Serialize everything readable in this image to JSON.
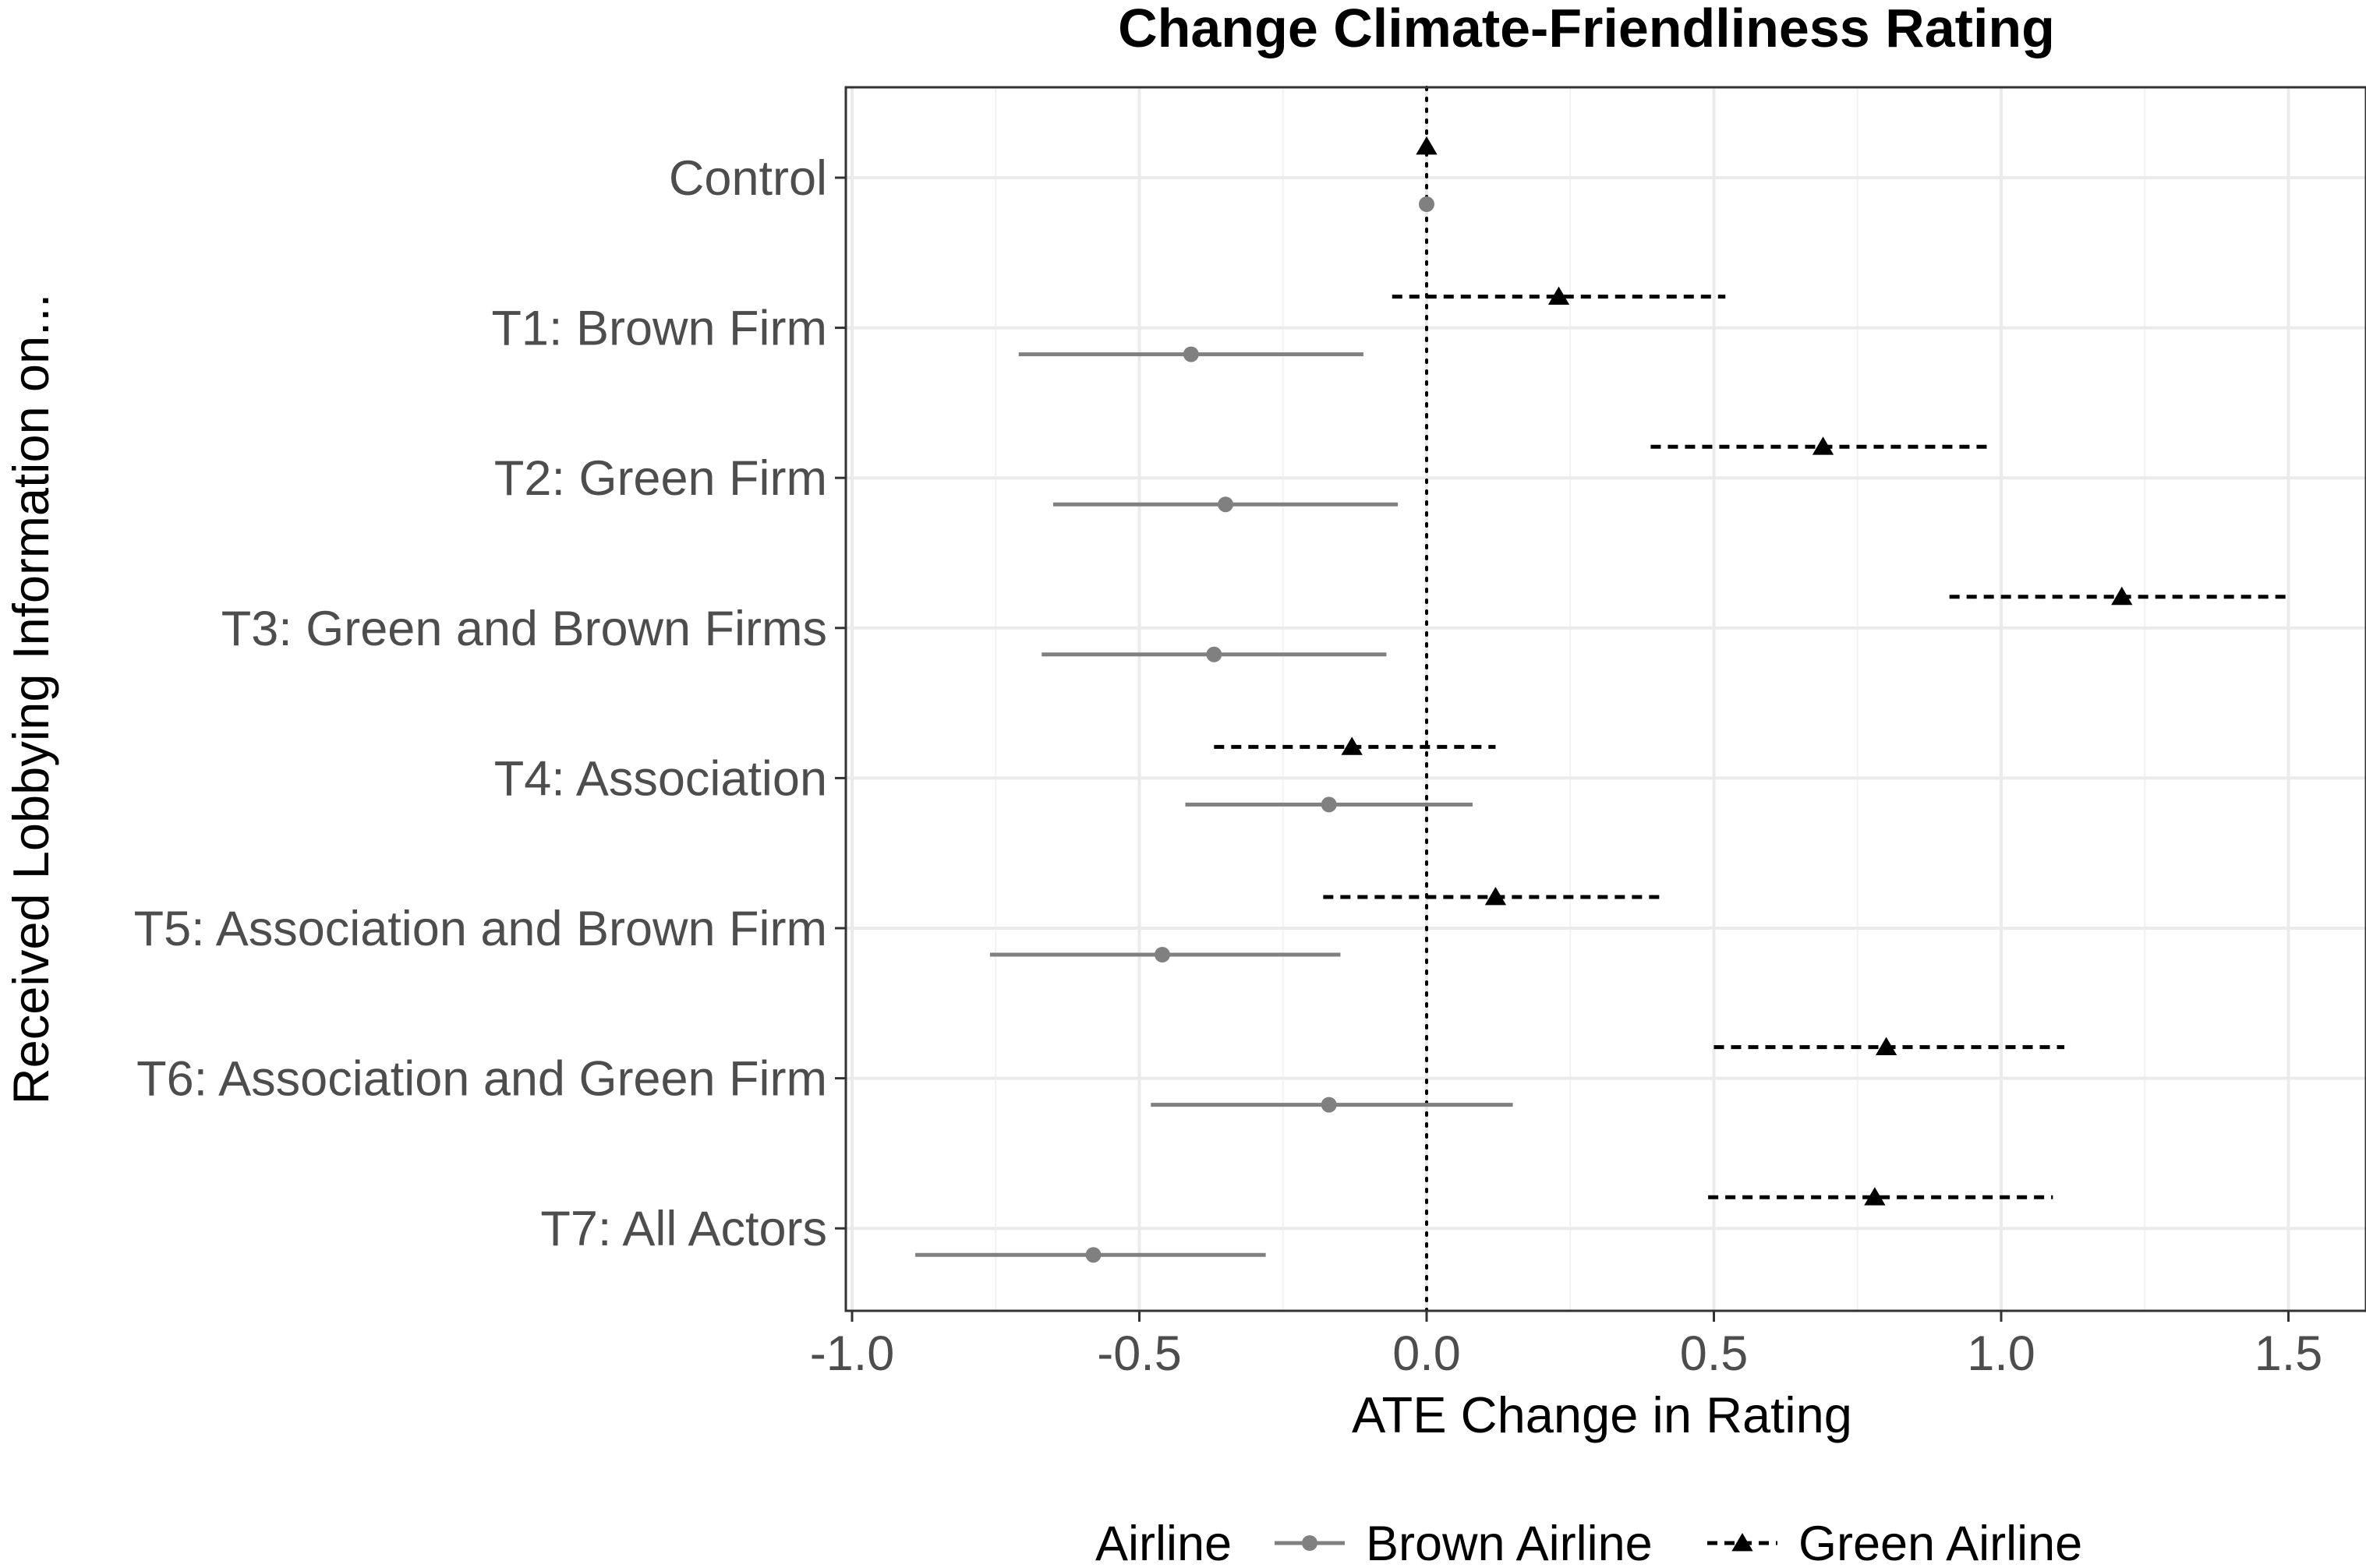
{
  "chart_data": {
    "type": "scatter",
    "subtype": "coefficient plot with horizontal confidence intervals",
    "title": "Change Climate-Friendliness Rating",
    "xlabel": "ATE Change in Rating",
    "ylabel": "Received Lobbying Information on...",
    "xlim": [
      -1.0,
      1.6
    ],
    "xticks": [
      "-1.0",
      "-0.5",
      "0.0",
      "0.5",
      "1.0",
      "1.5"
    ],
    "xtick_values": [
      -1.0,
      -0.5,
      0.0,
      0.5,
      1.0,
      1.5
    ],
    "reference_line_x": 0.0,
    "grid": true,
    "categories": [
      "Control",
      "T1: Brown Firm",
      "T2: Green Firm",
      "T3: Green and Brown Firms",
      "T4: Association",
      "T5: Association and Brown Firm",
      "T6: Association and Green Firm",
      "T7: All Actors"
    ],
    "legend": {
      "title": "Airline",
      "position": "bottom"
    },
    "series": [
      {
        "name": "Brown Airline",
        "color": "#808080",
        "marker": "circle",
        "line_style": "solid",
        "estimates": [
          0.0,
          -0.41,
          -0.35,
          -0.37,
          -0.17,
          -0.46,
          -0.17,
          -0.58
        ],
        "ci_low": [
          0.0,
          -0.71,
          -0.65,
          -0.67,
          -0.42,
          -0.76,
          -0.48,
          -0.89
        ],
        "ci_high": [
          0.0,
          -0.11,
          -0.05,
          -0.07,
          0.08,
          -0.15,
          0.15,
          -0.28
        ]
      },
      {
        "name": "Green Airline",
        "color": "#000000",
        "marker": "triangle",
        "line_style": "dashed",
        "estimates": [
          0.0,
          0.23,
          0.69,
          1.21,
          -0.13,
          0.12,
          0.8,
          0.78
        ],
        "ci_low": [
          0.0,
          -0.06,
          0.39,
          0.91,
          -0.37,
          -0.18,
          0.5,
          0.49
        ],
        "ci_high": [
          0.0,
          0.52,
          0.98,
          1.5,
          0.12,
          0.41,
          1.11,
          1.09
        ]
      }
    ]
  }
}
